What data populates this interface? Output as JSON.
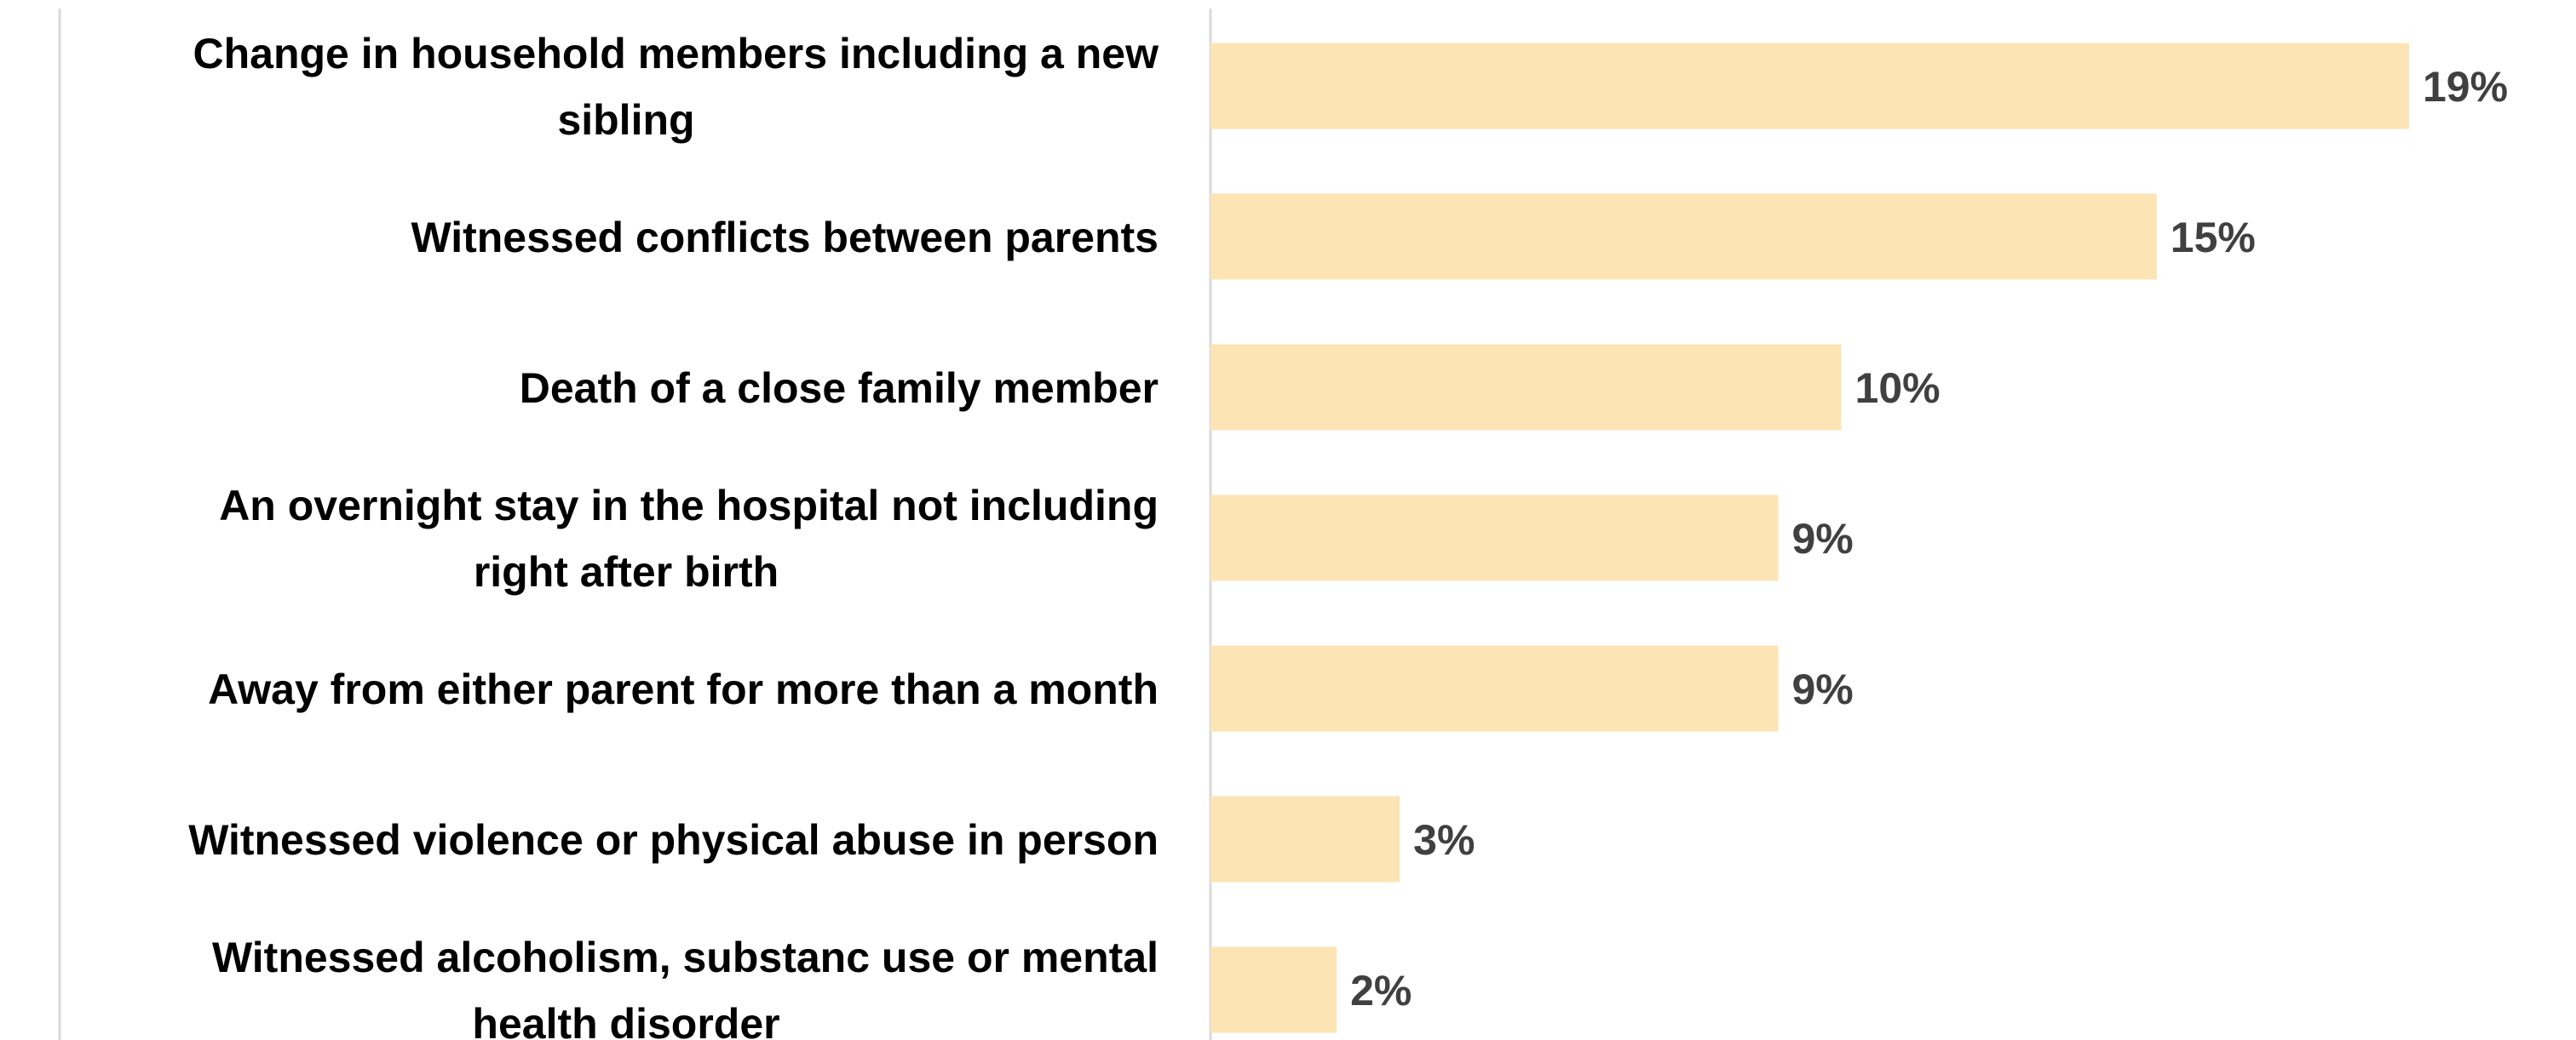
{
  "chart_data": {
    "type": "bar",
    "orientation": "horizontal",
    "categories": [
      "Change in household members including a new sibling",
      "Witnessed conflicts between parents",
      "Death of a close family member",
      "An overnight stay in the hospital not including right after birth",
      "Away from either parent for more than a month",
      "Witnessed violence or physical abuse in person",
      "Witnessed alcoholism, substanc use  or mental health disorder"
    ],
    "category_lines": [
      [
        "Change in household members including a new",
        "sibling"
      ],
      [
        "Witnessed conflicts between parents"
      ],
      [
        "Death of a close family member"
      ],
      [
        "An overnight stay in the hospital not including",
        "right after birth"
      ],
      [
        "Away from either parent for more than a month"
      ],
      [
        "Witnessed violence or physical abuse in person"
      ],
      [
        "Witnessed alcoholism, substanc use  or mental",
        "health disorder"
      ]
    ],
    "values": [
      19,
      15,
      10,
      9,
      9,
      3,
      2
    ],
    "data_labels": [
      "19%",
      "15%",
      "10%",
      "9%",
      "9%",
      "3%",
      "2%"
    ],
    "xlim": [
      0,
      19
    ],
    "colors": {
      "bar": "#FCE4B4",
      "label": "#000000",
      "value_label": "#404040",
      "axis_line": "#D9D9D9"
    },
    "grid": false,
    "legend": "none"
  }
}
